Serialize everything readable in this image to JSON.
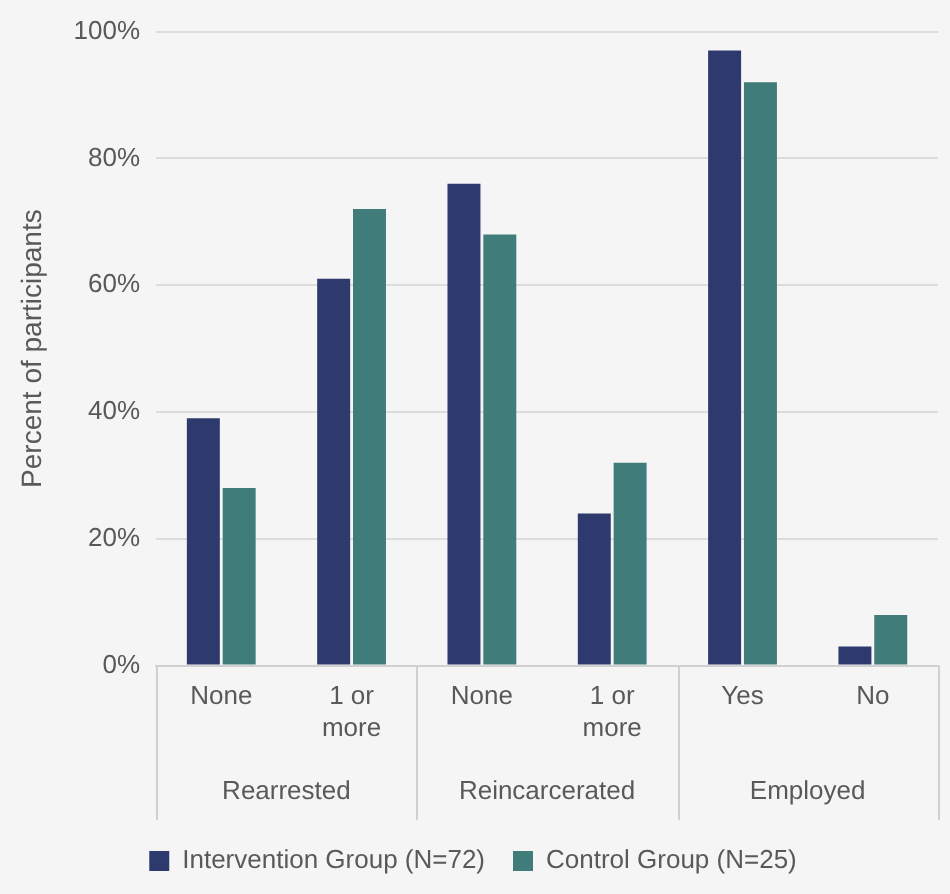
{
  "chart_data": {
    "type": "bar",
    "ylabel": "Percent of participants",
    "categories": [
      "None",
      "1 or more",
      "None",
      "1 or more",
      "Yes",
      "No"
    ],
    "annotations": [
      "Rearrested",
      "Reincarcerated",
      "Employed"
    ],
    "series": [
      {
        "name": "Intervention Group (N=72)",
        "color": "#2e3a6e",
        "values": [
          39,
          61,
          76,
          24,
          97,
          3
        ]
      },
      {
        "name": "Control Group (N=25)",
        "color": "#3f7c7a",
        "values": [
          28,
          72,
          68,
          32,
          92,
          8
        ]
      }
    ],
    "ylim": [
      0,
      100
    ],
    "yticks": [
      {
        "value": 0,
        "label": "0%"
      },
      {
        "value": 20,
        "label": "20%"
      },
      {
        "value": 40,
        "label": "40%"
      },
      {
        "value": 60,
        "label": "60%"
      },
      {
        "value": 80,
        "label": "80%"
      },
      {
        "value": 100,
        "label": "100%"
      }
    ],
    "grid": "y",
    "legend": "bottom"
  }
}
